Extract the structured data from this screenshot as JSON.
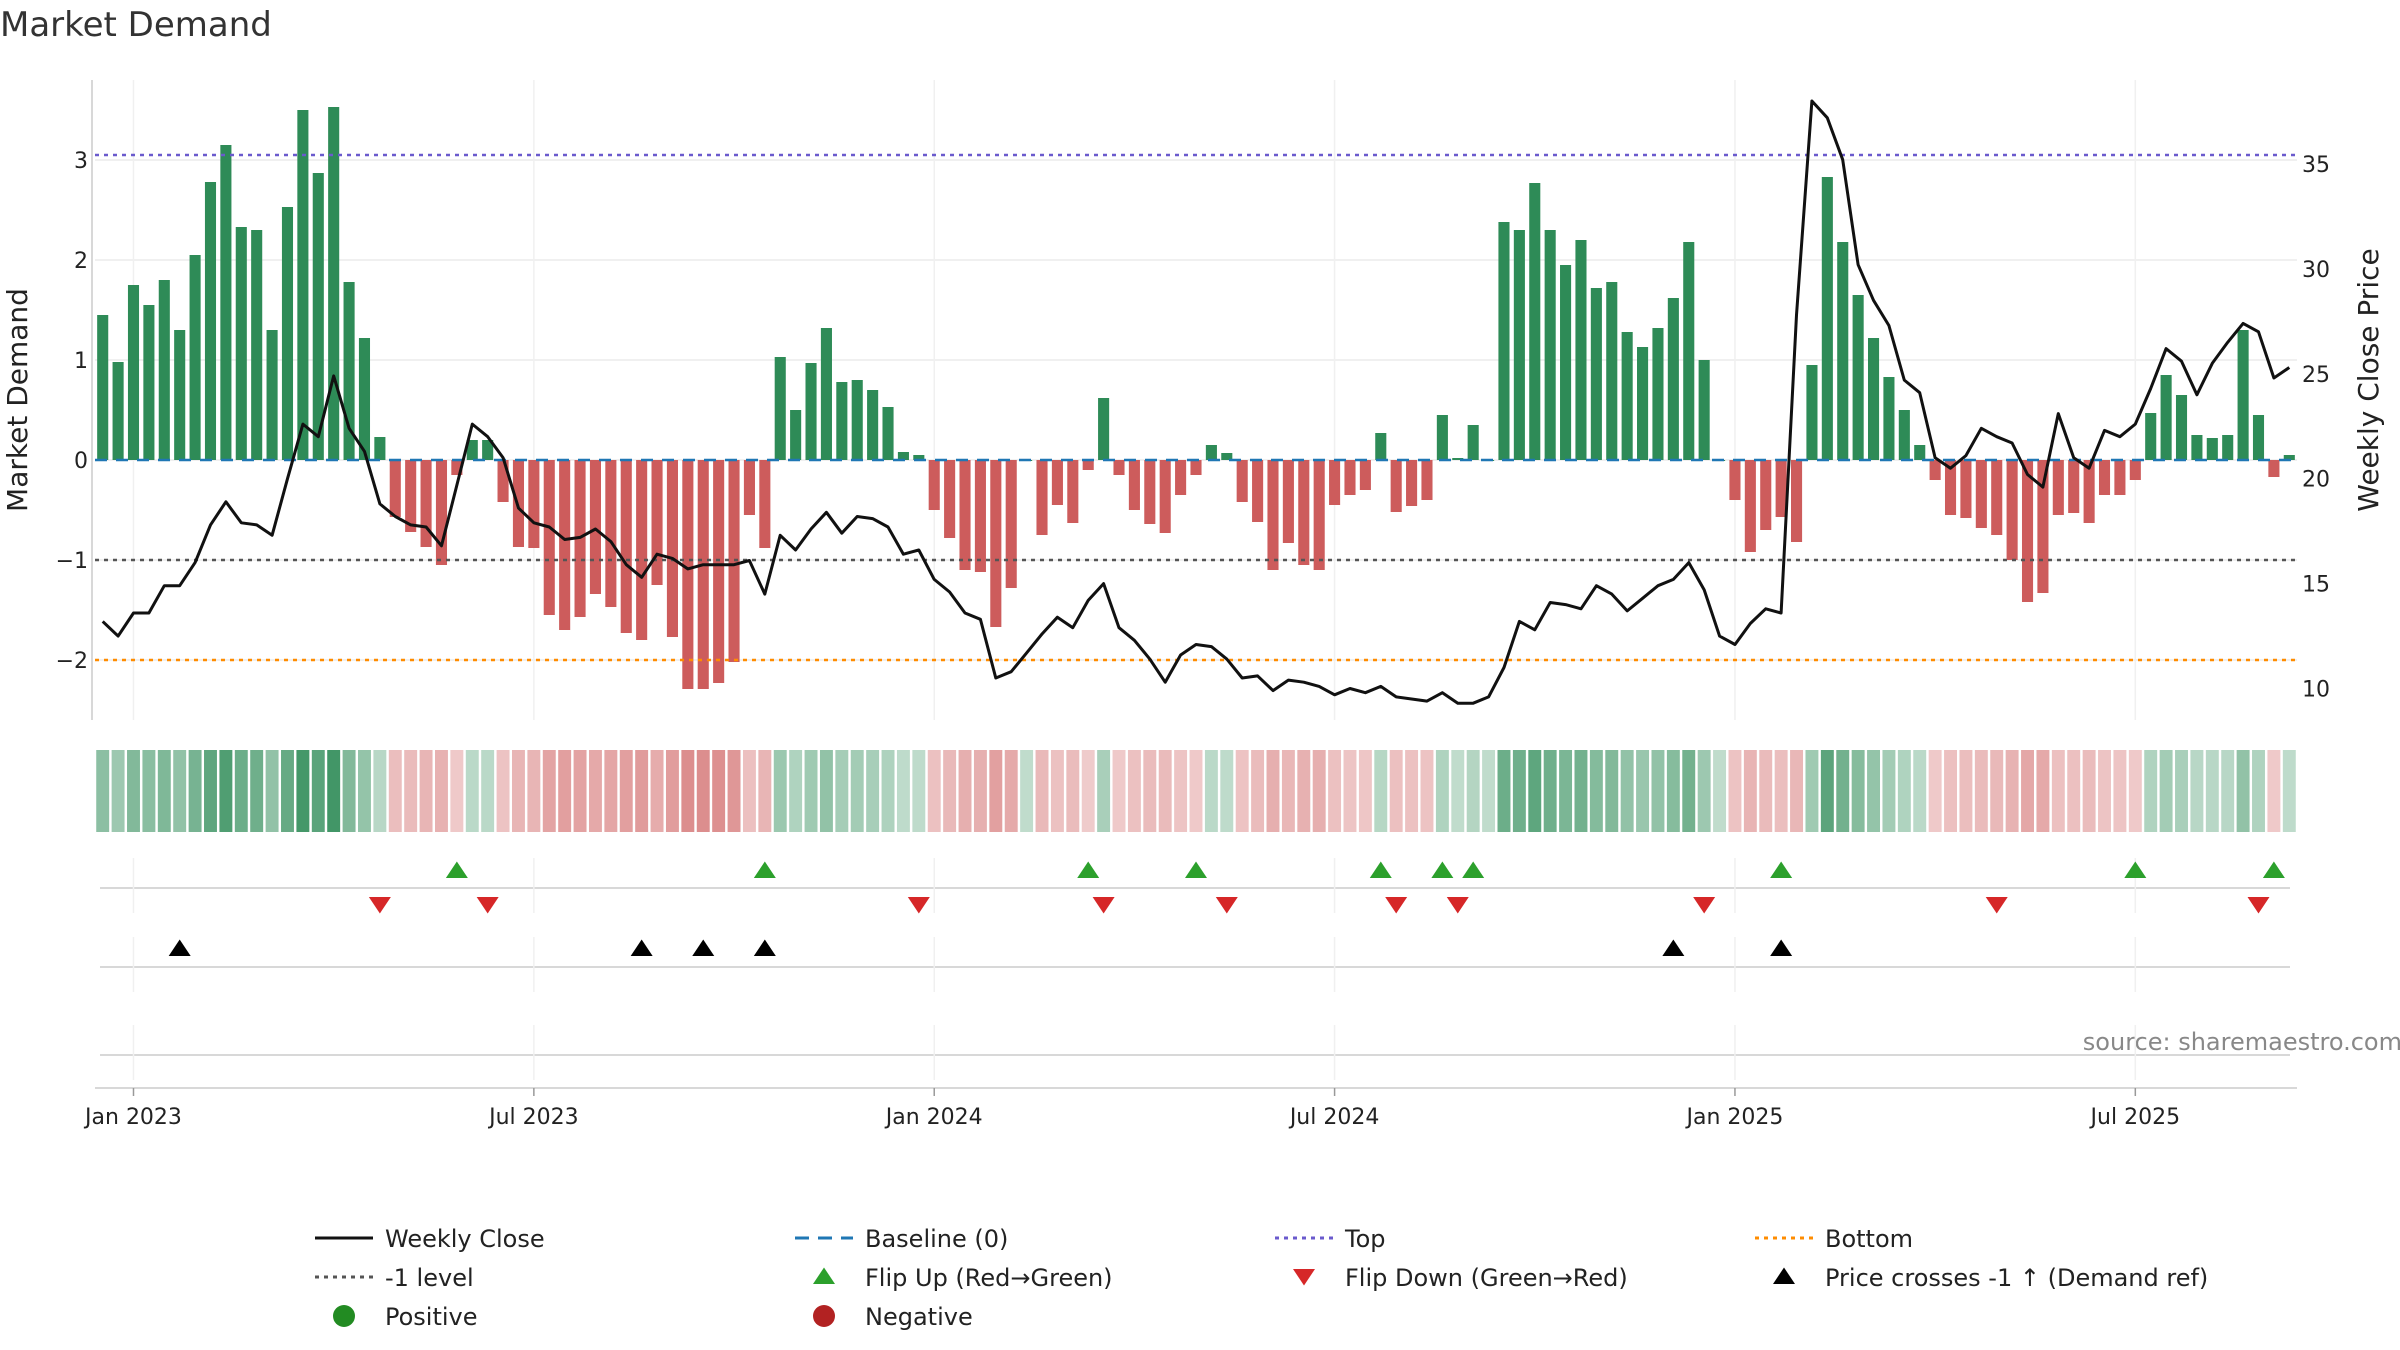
{
  "chart_data": {
    "type": "bar",
    "title": "Market Demand",
    "ylabel_left": "Market Demand",
    "ylabel_right": "Weekly Close Price",
    "source": "source: sharemaestro.com",
    "y_left_range": [
      -2.6,
      3.8
    ],
    "y_left_ticks": [
      -2,
      -1,
      0,
      1,
      2,
      3
    ],
    "y_left_tick_labels": [
      "−2",
      "−1",
      "0",
      "1",
      "2",
      "3"
    ],
    "y_right_range": [
      8.5,
      39
    ],
    "y_right_ticks": [
      10,
      15,
      20,
      25,
      30,
      35
    ],
    "y_right_tick_labels": [
      "10",
      "15",
      "20",
      "25",
      "30",
      "35"
    ],
    "x_tick_labels": [
      "Jan 2023",
      "Jul 2023",
      "Jan 2024",
      "Jul 2024",
      "Jan 2025",
      "Jul 2025"
    ],
    "x_tick_weeks": [
      2.5,
      28.5,
      54.5,
      80.5,
      106.5,
      132.5
    ],
    "levels": {
      "top": 3.05,
      "minus_one": -1.0,
      "bottom": -2.0,
      "baseline": 0
    },
    "demand": [
      1.45,
      0.98,
      1.75,
      1.55,
      1.8,
      1.3,
      2.05,
      2.78,
      3.15,
      2.33,
      2.3,
      1.3,
      2.53,
      3.5,
      2.87,
      3.53,
      1.78,
      1.22,
      0.23,
      -0.57,
      -0.72,
      -0.87,
      -1.05,
      -0.15,
      0.2,
      0.2,
      -0.42,
      -0.87,
      -0.88,
      -1.55,
      -1.7,
      -1.57,
      -1.34,
      -1.47,
      -1.73,
      -1.8,
      -1.25,
      -1.77,
      -2.29,
      -2.29,
      -2.23,
      -2.02,
      -0.55,
      -0.88,
      1.03,
      0.5,
      0.97,
      1.32,
      0.78,
      0.8,
      0.7,
      0.53,
      0.08,
      0.05,
      -0.5,
      -0.78,
      -1.1,
      -1.12,
      -1.67,
      -1.28,
      0.0,
      -0.75,
      -0.45,
      -0.63,
      -0.1,
      0.62,
      -0.15,
      -0.5,
      -0.64,
      -0.73,
      -0.35,
      -0.15,
      0.15,
      0.07,
      -0.42,
      -0.62,
      -1.1,
      -0.83,
      -1.05,
      -1.1,
      -0.45,
      -0.35,
      -0.3,
      0.27,
      -0.52,
      -0.46,
      -0.4,
      0.45,
      0.02,
      0.35,
      0.0,
      2.38,
      2.3,
      2.77,
      2.3,
      1.95,
      2.2,
      1.72,
      1.78,
      1.28,
      1.13,
      1.32,
      1.62,
      2.18,
      1.0,
      0.0,
      -0.4,
      -0.92,
      -0.7,
      -0.57,
      -0.82,
      0.95,
      2.83,
      2.18,
      1.65,
      1.22,
      0.83,
      0.5,
      0.15,
      -0.2,
      -0.55,
      -0.58,
      -0.68,
      -0.75,
      -1.0,
      -1.42,
      -1.33,
      -0.55,
      -0.53,
      -0.63,
      -0.35,
      -0.35,
      -0.2,
      0.47,
      0.85,
      0.65,
      0.25,
      0.22,
      0.25,
      1.3,
      0.45,
      -0.17,
      0.05
    ],
    "weekly_close": [
      13.2,
      12.5,
      13.6,
      13.6,
      14.9,
      14.9,
      16.0,
      17.8,
      18.9,
      17.9,
      17.8,
      17.3,
      20.0,
      22.6,
      22.0,
      24.9,
      22.4,
      21.3,
      18.8,
      18.2,
      17.8,
      17.7,
      16.8,
      19.7,
      22.6,
      22.0,
      21.0,
      18.6,
      17.9,
      17.7,
      17.1,
      17.2,
      17.6,
      17.0,
      15.9,
      15.3,
      16.4,
      16.2,
      15.7,
      15.9,
      15.9,
      15.9,
      16.1,
      14.5,
      17.3,
      16.6,
      17.6,
      18.4,
      17.4,
      18.2,
      18.1,
      17.7,
      16.4,
      16.6,
      15.2,
      14.6,
      13.6,
      13.3,
      10.5,
      10.8,
      11.7,
      12.6,
      13.4,
      12.9,
      14.2,
      15.0,
      12.9,
      12.3,
      11.4,
      10.3,
      11.6,
      12.1,
      12.0,
      11.4,
      10.5,
      10.6,
      9.9,
      10.4,
      10.3,
      10.1,
      9.7,
      10.0,
      9.8,
      10.1,
      9.6,
      9.5,
      9.4,
      9.8,
      9.3,
      9.3,
      9.6,
      11.0,
      13.2,
      12.8,
      14.1,
      14.0,
      13.8,
      14.9,
      14.5,
      13.7,
      14.3,
      14.9,
      15.2,
      16.0,
      14.7,
      12.5,
      12.1,
      13.1,
      13.8,
      13.6,
      27.8,
      38.0,
      37.2,
      35.2,
      30.2,
      28.5,
      27.3,
      24.7,
      24.1,
      21.0,
      20.5,
      21.1,
      22.4,
      22.0,
      21.7,
      20.2,
      19.6,
      23.1,
      21.0,
      20.5,
      22.3,
      22.0,
      22.6,
      24.3,
      26.2,
      25.6,
      24.0,
      25.5,
      26.5,
      27.4,
      27.0,
      24.8,
      25.3
    ],
    "flip_up_weeks": [
      23,
      43,
      64,
      71,
      83,
      87,
      89,
      109,
      132,
      141
    ],
    "flip_down_weeks": [
      18,
      25,
      53,
      65,
      73,
      84,
      88,
      104,
      123,
      140
    ],
    "cross_weeks": [
      5,
      35,
      39,
      43,
      102,
      109
    ],
    "colors": {
      "positive_bar": "#2e8b57",
      "negative_bar": "#cd5c5c",
      "weekly_close": "#111111",
      "baseline": "#1f77b4",
      "top": "#6a5acd",
      "minus_one": "#555555",
      "bottom": "#ff8c00",
      "flip_up": "#2ca02c",
      "flip_down": "#d62728",
      "cross": "#000000"
    },
    "legend": [
      {
        "label": "Weekly Close",
        "marker": "solid-line",
        "color": "#111111"
      },
      {
        "label": "Baseline (0)",
        "marker": "dashed-line",
        "color": "#1f77b4"
      },
      {
        "label": "Top",
        "marker": "dotted-line",
        "color": "#6a5acd"
      },
      {
        "label": "Bottom",
        "marker": "dotted-line",
        "color": "#ff8c00"
      },
      {
        "label": "-1 level",
        "marker": "dotted-line",
        "color": "#555555"
      },
      {
        "label": "Flip Up (Red→Green)",
        "marker": "triangle-up",
        "color": "#2ca02c"
      },
      {
        "label": "Flip Down (Green→Red)",
        "marker": "triangle-down",
        "color": "#d62728"
      },
      {
        "label": "Price crosses -1 ↑ (Demand ref)",
        "marker": "triangle-up",
        "color": "#000000"
      },
      {
        "label": "Positive",
        "marker": "circle",
        "color": "#228b22"
      },
      {
        "label": "Negative",
        "marker": "circle",
        "color": "#b22222"
      }
    ]
  }
}
